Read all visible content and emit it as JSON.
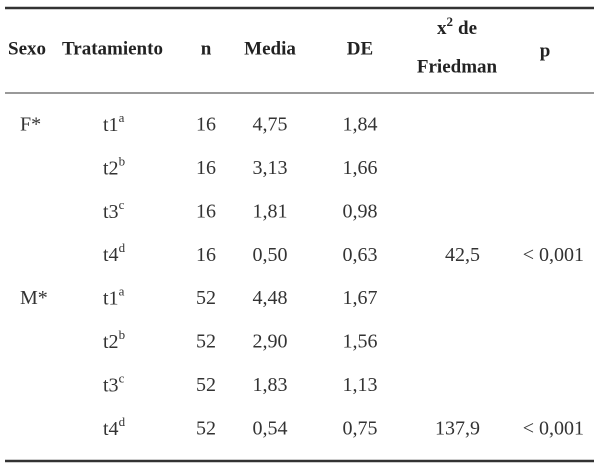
{
  "table": {
    "header": {
      "sexo": "Sexo",
      "tratamiento": "Tratamiento",
      "n": "n",
      "media": "Media",
      "de": "DE",
      "chi": {
        "symbol": "x",
        "sup": "2",
        "rest": "de",
        "line2": "Friedman"
      },
      "p": "p"
    },
    "rows": [
      {
        "sexo": "F*",
        "tratamiento": "t1",
        "sup": "a",
        "n": "16",
        "media": "4,75",
        "de": "1,84"
      },
      {
        "tratamiento": "t2",
        "sup": "b",
        "n": "16",
        "media": "3,13",
        "de": "1,66"
      },
      {
        "tratamiento": "t3",
        "sup": "c",
        "n": "16",
        "media": "1,81",
        "de": "0,98"
      },
      {
        "tratamiento": "t4",
        "sup": "d",
        "n": "16",
        "media": "0,50",
        "de": "0,63",
        "chi": "42,5",
        "p": "< 0,001"
      },
      {
        "sexo": "M*",
        "tratamiento": "t1",
        "sup": "a",
        "n": "52",
        "media": "4,48",
        "de": "1,67"
      },
      {
        "tratamiento": "t2",
        "sup": "b",
        "n": "52",
        "media": "2,90",
        "de": "1,56"
      },
      {
        "tratamiento": "t3",
        "sup": "c",
        "n": "52",
        "media": "1,83",
        "de": "1,13"
      },
      {
        "tratamiento": "t4",
        "sup": "d",
        "n": "52",
        "media": "0,54",
        "de": "0,75",
        "chi": "137,9",
        "p": "< 0,001"
      }
    ]
  }
}
